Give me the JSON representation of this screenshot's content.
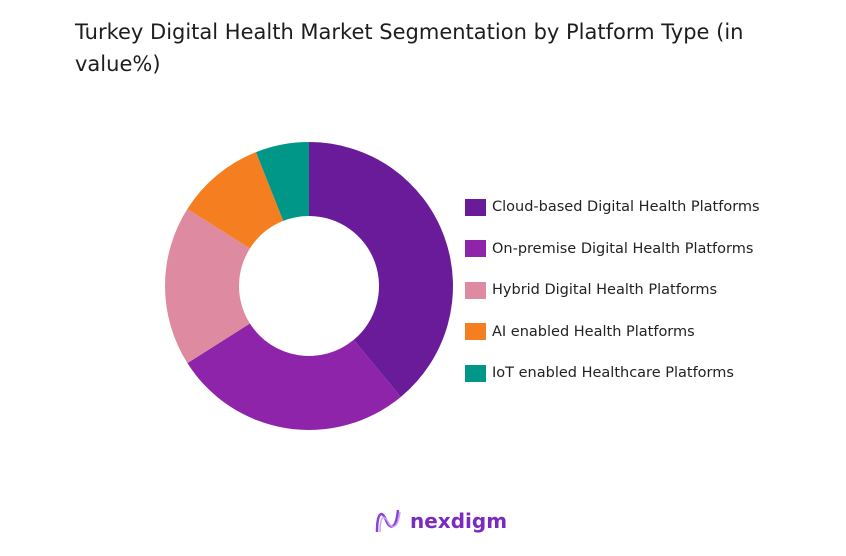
{
  "chart_data": {
    "type": "pie",
    "donut": true,
    "title": "Turkey Digital Health Market Segmentation by Platform Type (in value%)",
    "categories": [
      "Cloud-based Digital Health Platforms",
      "On-premise Digital Health Platforms",
      "Hybrid Digital Health Platforms",
      "AI enabled Health Platforms",
      "IoT enabled Healthcare Platforms"
    ],
    "values": [
      39,
      27,
      18,
      10,
      6
    ],
    "colors": [
      "#6a1b9a",
      "#8e24aa",
      "#de8aa0",
      "#f57f20",
      "#009688"
    ],
    "legend_position": "right"
  },
  "brand": {
    "name": "nexdigm"
  }
}
